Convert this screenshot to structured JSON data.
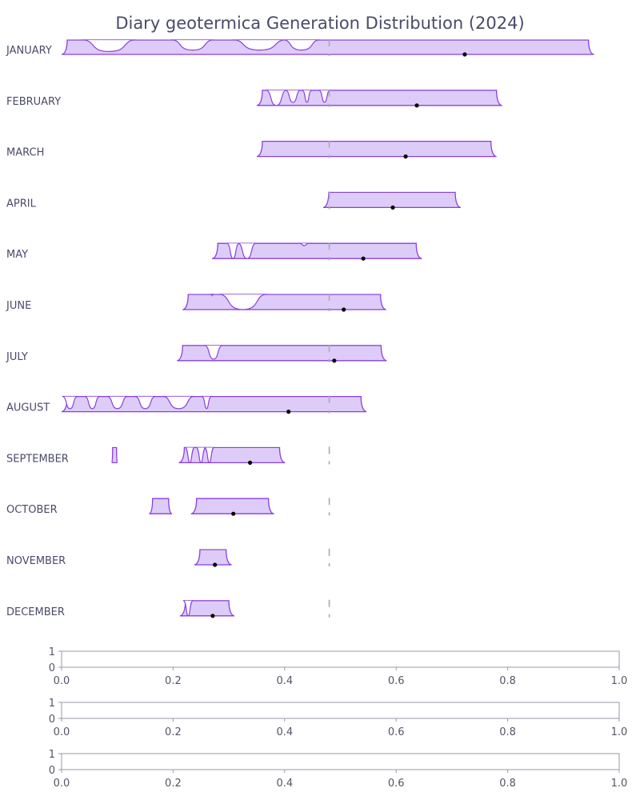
{
  "chart_data": {
    "type": "ridgeline",
    "title": "Diary geotermica Generation Distribution (2024)",
    "xlim": [
      0,
      1
    ],
    "reference_value": 0.48,
    "rows": [
      {
        "label": "JANUARY",
        "mean": 0.723,
        "segments": [
          [
            0.0,
            0.955
          ]
        ],
        "dips": [
          [
            0.04,
            0.13,
            0.8
          ],
          [
            0.2,
            0.27,
            0.7
          ],
          [
            0.31,
            0.4,
            0.7
          ],
          [
            0.4,
            0.46,
            0.7
          ]
        ]
      },
      {
        "label": "FEBRUARY",
        "mean": 0.637,
        "segments": [
          [
            0.35,
            0.79
          ]
        ],
        "dips": [
          [
            0.37,
            0.4,
            1.0
          ],
          [
            0.405,
            0.425,
            0.8
          ],
          [
            0.435,
            0.445,
            0.8
          ],
          [
            0.465,
            0.478,
            0.8
          ]
        ]
      },
      {
        "label": "MARCH",
        "mean": 0.617,
        "segments": [
          [
            0.35,
            0.78
          ]
        ],
        "dips": []
      },
      {
        "label": "APRIL",
        "mean": 0.594,
        "segments": [
          [
            0.469,
            0.716
          ]
        ],
        "dips": []
      },
      {
        "label": "MAY",
        "mean": 0.541,
        "segments": [
          [
            0.27,
            0.646
          ]
        ],
        "dips": [
          [
            0.3,
            0.315,
            1.0
          ],
          [
            0.32,
            0.345,
            1.0
          ],
          [
            0.43,
            0.44,
            0.15
          ]
        ]
      },
      {
        "label": "JUNE",
        "mean": 0.506,
        "segments": [
          [
            0.217,
            0.582
          ]
        ],
        "dips": [
          [
            0.27,
            0.27,
            0.1
          ],
          [
            0.285,
            0.365,
            1.0
          ]
        ]
      },
      {
        "label": "JULY",
        "mean": 0.489,
        "segments": [
          [
            0.207,
            0.583
          ]
        ],
        "dips": [
          [
            0.26,
            0.285,
            0.9
          ]
        ]
      },
      {
        "label": "AUGUST",
        "mean": 0.407,
        "segments": [
          [
            0.0,
            0.547
          ]
        ],
        "dips": [
          [
            0.005,
            0.025,
            0.8
          ],
          [
            0.045,
            0.065,
            0.8
          ],
          [
            0.085,
            0.115,
            0.8
          ],
          [
            0.135,
            0.165,
            0.8
          ],
          [
            0.185,
            0.235,
            0.8
          ],
          [
            0.255,
            0.265,
            0.8
          ]
        ]
      },
      {
        "label": "SEPTEMBER",
        "mean": 0.338,
        "segments": [
          [
            0.09,
            0.1
          ],
          [
            0.21,
            0.401
          ]
        ],
        "dips": [
          [
            0.225,
            0.235,
            1.0
          ],
          [
            0.245,
            0.255,
            1.0
          ],
          [
            0.26,
            0.27,
            1.0
          ]
        ]
      },
      {
        "label": "OCTOBER",
        "mean": 0.308,
        "segments": [
          [
            0.157,
            0.198
          ],
          [
            0.232,
            0.381
          ]
        ],
        "dips": []
      },
      {
        "label": "NOVEMBER",
        "mean": 0.275,
        "segments": [
          [
            0.238,
            0.305
          ]
        ],
        "dips": []
      },
      {
        "label": "DECEMBER",
        "mean": 0.271,
        "segments": [
          [
            0.212,
            0.31
          ]
        ],
        "dips": [
          [
            0.222,
            0.232,
            1.0
          ]
        ]
      }
    ],
    "empty_axes": [
      {
        "ylim": [
          0,
          1
        ],
        "yticks": [
          "1",
          "0"
        ],
        "xticks": [
          "0.0",
          "0.2",
          "0.4",
          "0.6",
          "0.8",
          "1.0"
        ]
      },
      {
        "ylim": [
          0,
          1
        ],
        "yticks": [
          "1",
          "0"
        ],
        "xticks": [
          "0.0",
          "0.2",
          "0.4",
          "0.6",
          "0.8",
          "1.0"
        ]
      },
      {
        "ylim": [
          0,
          1
        ],
        "yticks": [
          "1",
          "0"
        ],
        "xticks": [
          "0.0",
          "0.2",
          "0.4",
          "0.6",
          "0.8",
          "1.0"
        ]
      }
    ]
  }
}
